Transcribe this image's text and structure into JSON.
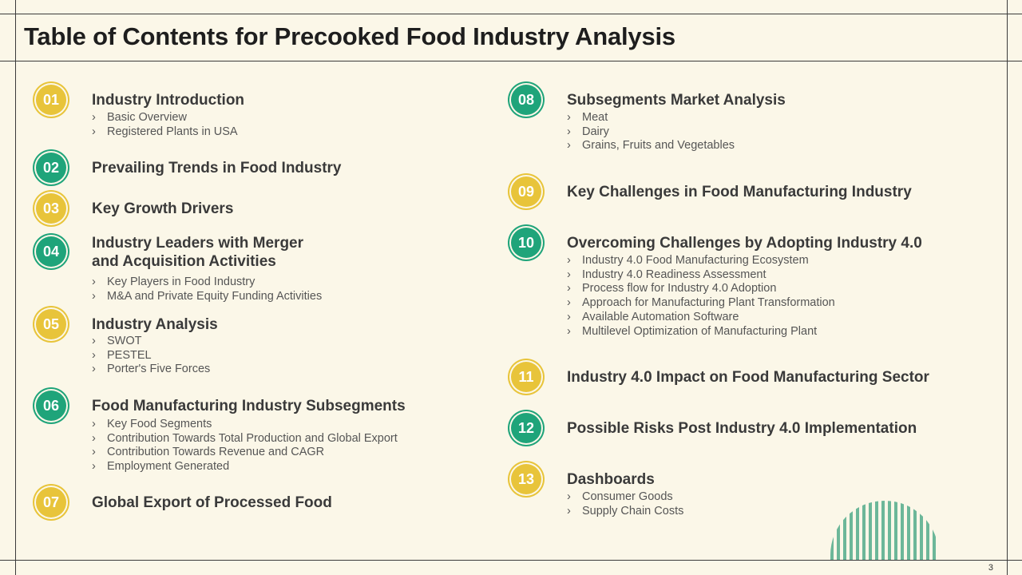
{
  "title": "Table of Contents for Precooked Food Industry Analysis",
  "page_number": "3",
  "colors": {
    "yellow": "#e8c43a",
    "green": "#1fa47a",
    "background": "#fbf7e8"
  },
  "items": [
    {
      "num": "01",
      "color": "yellow",
      "heading": "Industry Introduction",
      "subs": [
        "Basic Overview",
        "Registered Plants in USA"
      ]
    },
    {
      "num": "02",
      "color": "green",
      "heading": "Prevailing Trends in Food Industry",
      "subs": []
    },
    {
      "num": "03",
      "color": "yellow",
      "heading": "Key Growth Drivers",
      "subs": []
    },
    {
      "num": "04",
      "color": "green",
      "heading_line1": "Industry Leaders with Merger",
      "heading_line2": "and Acquisition Activities",
      "subs": [
        "Key Players in Food Industry",
        "M&A and Private Equity Funding Activities"
      ]
    },
    {
      "num": "05",
      "color": "yellow",
      "heading": "Industry Analysis",
      "subs": [
        "SWOT",
        "PESTEL",
        "Porter's Five Forces"
      ]
    },
    {
      "num": "06",
      "color": "green",
      "heading": "Food Manufacturing Industry Subsegments",
      "subs": [
        "Key Food Segments",
        "Contribution Towards Total Production and Global Export",
        "Contribution Towards Revenue and CAGR",
        "Employment Generated"
      ]
    },
    {
      "num": "07",
      "color": "yellow",
      "heading": "Global Export of Processed Food",
      "subs": []
    },
    {
      "num": "08",
      "color": "green",
      "heading": "Subsegments Market Analysis",
      "subs": [
        "Meat",
        "Dairy",
        "Grains, Fruits and Vegetables"
      ]
    },
    {
      "num": "09",
      "color": "yellow",
      "heading": "Key Challenges in Food Manufacturing Industry",
      "subs": []
    },
    {
      "num": "10",
      "color": "green",
      "heading": "Overcoming Challenges by Adopting Industry 4.0",
      "subs": [
        "Industry 4.0 Food Manufacturing Ecosystem",
        "Industry 4.0 Readiness Assessment",
        "Process flow for Industry 4.0 Adoption",
        "Approach for Manufacturing Plant Transformation",
        "Available Automation Software",
        "Multilevel Optimization of Manufacturing Plant"
      ]
    },
    {
      "num": "11",
      "color": "yellow",
      "heading": "Industry 4.0 Impact on Food Manufacturing Sector",
      "subs": []
    },
    {
      "num": "12",
      "color": "green",
      "heading": "Possible Risks Post Industry 4.0 Implementation",
      "subs": []
    },
    {
      "num": "13",
      "color": "yellow",
      "heading": "Dashboards",
      "subs": [
        "Consumer Goods",
        "Supply Chain Costs"
      ]
    }
  ]
}
